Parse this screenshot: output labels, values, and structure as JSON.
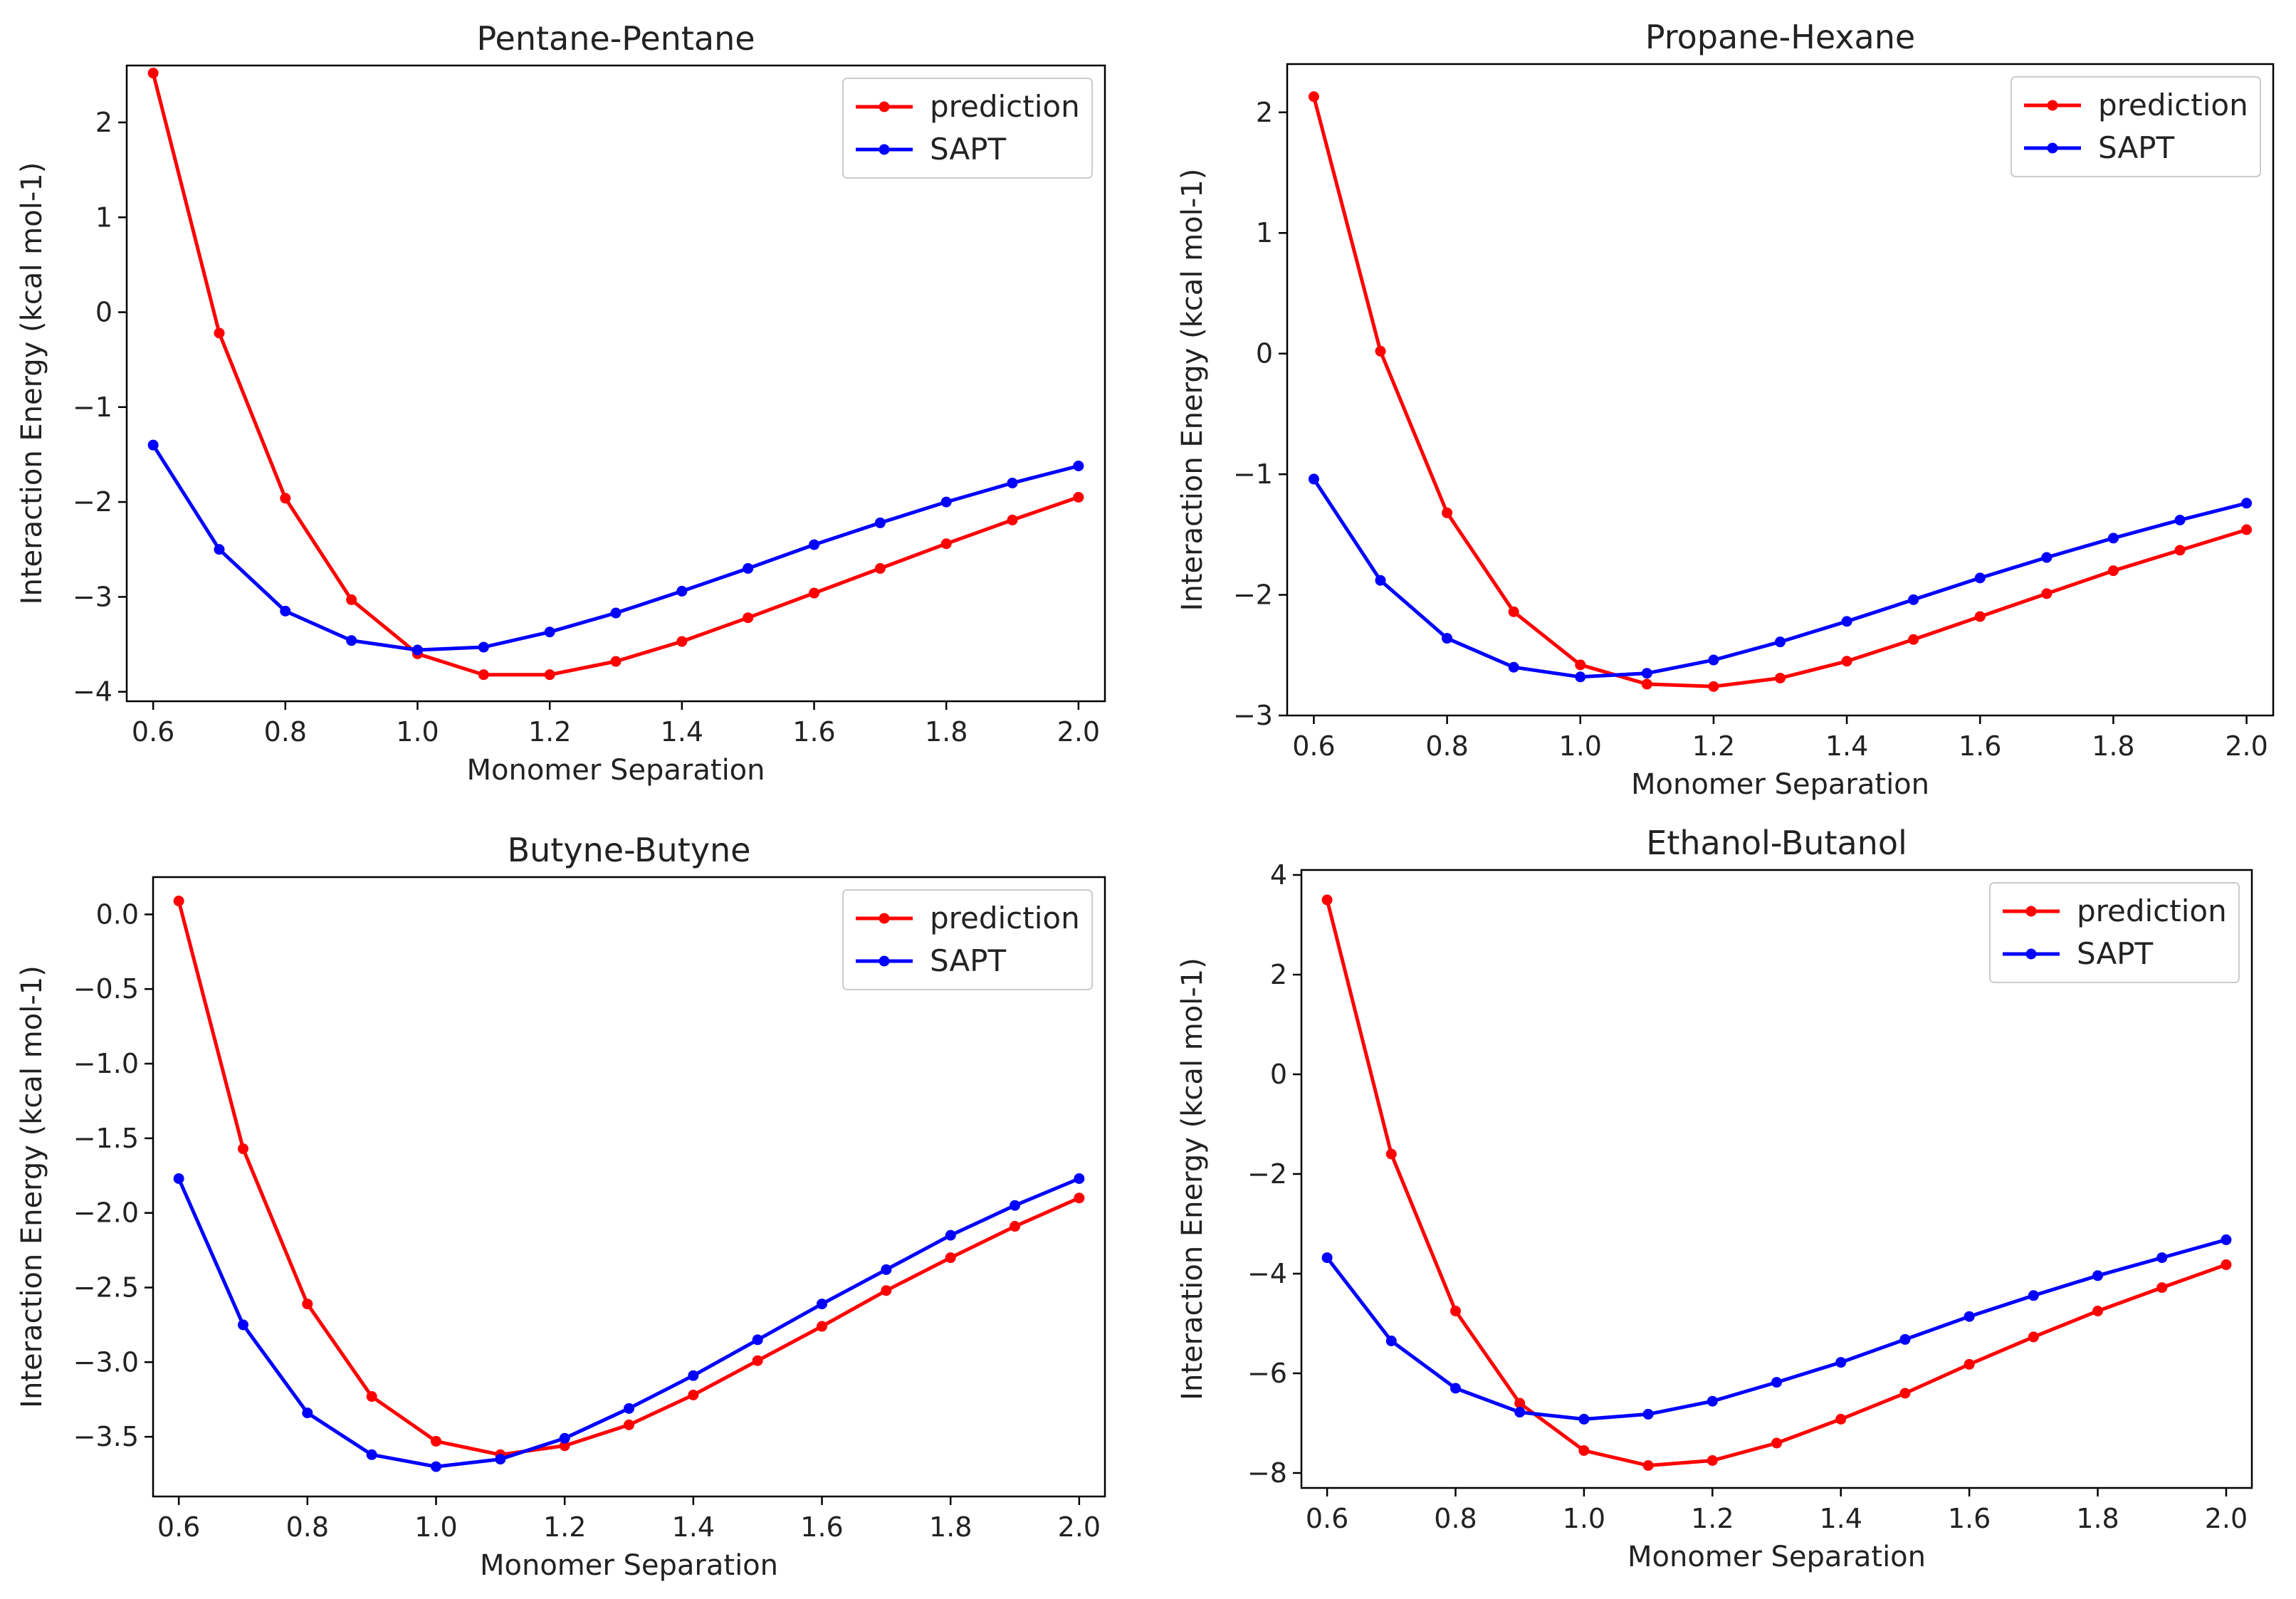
{
  "figure_title": "",
  "chart_data": [
    {
      "type": "line",
      "title": "Pentane-Pentane",
      "xlabel": "Monomer Separation",
      "ylabel": "Interaction Energy (kcal mol-1)",
      "xlim": [
        0.56,
        2.04
      ],
      "ylim": [
        -4.1,
        2.6
      ],
      "xticks": [
        0.6,
        0.8,
        1.0,
        1.2,
        1.4,
        1.6,
        1.8,
        2.0
      ],
      "xtick_labels": [
        "0.6",
        "0.8",
        "1.0",
        "1.2",
        "1.4",
        "1.6",
        "1.8",
        "2.0"
      ],
      "yticks": [
        -4,
        -3,
        -2,
        -1,
        0,
        1,
        2
      ],
      "ytick_labels": [
        "−4",
        "−3",
        "−2",
        "−1",
        "0",
        "1",
        "2"
      ],
      "x": [
        0.6,
        0.7,
        0.8,
        0.9,
        1.0,
        1.1,
        1.2,
        1.3,
        1.4,
        1.5,
        1.6,
        1.7,
        1.8,
        1.9,
        2.0
      ],
      "series": [
        {
          "name": "prediction",
          "color": "#ff0000",
          "values": [
            2.52,
            -0.22,
            -1.96,
            -3.03,
            -3.6,
            -3.82,
            -3.82,
            -3.68,
            -3.47,
            -3.22,
            -2.96,
            -2.7,
            -2.44,
            -2.19,
            -1.95
          ]
        },
        {
          "name": "SAPT",
          "color": "#0000ff",
          "values": [
            -1.4,
            -2.5,
            -3.15,
            -3.46,
            -3.56,
            -3.53,
            -3.37,
            -3.17,
            -2.94,
            -2.7,
            -2.45,
            -2.22,
            -2.0,
            -1.8,
            -1.62
          ]
        }
      ],
      "legend": "upper right"
    },
    {
      "type": "line",
      "title": "Propane-Hexane",
      "xlabel": "Monomer Separation",
      "ylabel": "Interaction Energy (kcal mol-1)",
      "xlim": [
        0.56,
        2.04
      ],
      "ylim": [
        -3.0,
        2.4
      ],
      "xticks": [
        0.6,
        0.8,
        1.0,
        1.2,
        1.4,
        1.6,
        1.8,
        2.0
      ],
      "xtick_labels": [
        "0.6",
        "0.8",
        "1.0",
        "1.2",
        "1.4",
        "1.6",
        "1.8",
        "2.0"
      ],
      "yticks": [
        -3,
        -2,
        -1,
        0,
        1,
        2
      ],
      "ytick_labels": [
        "−3",
        "−2",
        "−1",
        "0",
        "1",
        "2"
      ],
      "x": [
        0.6,
        0.7,
        0.8,
        0.9,
        1.0,
        1.1,
        1.2,
        1.3,
        1.4,
        1.5,
        1.6,
        1.7,
        1.8,
        1.9,
        2.0
      ],
      "series": [
        {
          "name": "prediction",
          "color": "#ff0000",
          "values": [
            2.13,
            0.02,
            -1.32,
            -2.14,
            -2.58,
            -2.74,
            -2.76,
            -2.69,
            -2.55,
            -2.37,
            -2.18,
            -1.99,
            -1.8,
            -1.63,
            -1.46
          ]
        },
        {
          "name": "SAPT",
          "color": "#0000ff",
          "values": [
            -1.04,
            -1.88,
            -2.36,
            -2.6,
            -2.68,
            -2.65,
            -2.54,
            -2.39,
            -2.22,
            -2.04,
            -1.86,
            -1.69,
            -1.53,
            -1.38,
            -1.24
          ]
        }
      ],
      "legend": "upper right"
    },
    {
      "type": "line",
      "title": "Butyne-Butyne",
      "xlabel": "Monomer Separation",
      "ylabel": "Interaction Energy (kcal mol-1)",
      "xlim": [
        0.56,
        2.04
      ],
      "ylim": [
        -3.9,
        0.25
      ],
      "xticks": [
        0.6,
        0.8,
        1.0,
        1.2,
        1.4,
        1.6,
        1.8,
        2.0
      ],
      "xtick_labels": [
        "0.6",
        "0.8",
        "1.0",
        "1.2",
        "1.4",
        "1.6",
        "1.8",
        "2.0"
      ],
      "yticks": [
        -3.5,
        -3.0,
        -2.5,
        -2.0,
        -1.5,
        -1.0,
        -0.5,
        0.0
      ],
      "ytick_labels": [
        "−3.5",
        "−3.0",
        "−2.5",
        "−2.0",
        "−1.5",
        "−1.0",
        "−0.5",
        "0.0"
      ],
      "x": [
        0.6,
        0.7,
        0.8,
        0.9,
        1.0,
        1.1,
        1.2,
        1.3,
        1.4,
        1.5,
        1.6,
        1.7,
        1.8,
        1.9,
        2.0
      ],
      "series": [
        {
          "name": "prediction",
          "color": "#ff0000",
          "values": [
            0.09,
            -1.57,
            -2.61,
            -3.23,
            -3.53,
            -3.62,
            -3.56,
            -3.42,
            -3.22,
            -2.99,
            -2.76,
            -2.52,
            -2.3,
            -2.09,
            -1.9
          ]
        },
        {
          "name": "SAPT",
          "color": "#0000ff",
          "values": [
            -1.77,
            -2.75,
            -3.34,
            -3.62,
            -3.7,
            -3.65,
            -3.51,
            -3.31,
            -3.09,
            -2.85,
            -2.61,
            -2.38,
            -2.15,
            -1.95,
            -1.77
          ]
        }
      ],
      "legend": "upper right"
    },
    {
      "type": "line",
      "title": "Ethanol-Butanol",
      "xlabel": "Monomer Separation",
      "ylabel": "Interaction Energy (kcal mol-1)",
      "xlim": [
        0.56,
        2.04
      ],
      "ylim": [
        -8.3,
        4.1
      ],
      "xticks": [
        0.6,
        0.8,
        1.0,
        1.2,
        1.4,
        1.6,
        1.8,
        2.0
      ],
      "xtick_labels": [
        "0.6",
        "0.8",
        "1.0",
        "1.2",
        "1.4",
        "1.6",
        "1.8",
        "2.0"
      ],
      "yticks": [
        -8,
        -6,
        -4,
        -2,
        0,
        2,
        4
      ],
      "ytick_labels": [
        "−8",
        "−6",
        "−4",
        "−2",
        "0",
        "2",
        "4"
      ],
      "x": [
        0.6,
        0.7,
        0.8,
        0.9,
        1.0,
        1.1,
        1.2,
        1.3,
        1.4,
        1.5,
        1.6,
        1.7,
        1.8,
        1.9,
        2.0
      ],
      "series": [
        {
          "name": "prediction",
          "color": "#ff0000",
          "values": [
            3.5,
            -1.6,
            -4.75,
            -6.6,
            -7.55,
            -7.85,
            -7.75,
            -7.4,
            -6.92,
            -6.4,
            -5.82,
            -5.27,
            -4.75,
            -4.28,
            -3.82
          ]
        },
        {
          "name": "SAPT",
          "color": "#0000ff",
          "values": [
            -3.68,
            -5.35,
            -6.3,
            -6.78,
            -6.92,
            -6.82,
            -6.56,
            -6.18,
            -5.78,
            -5.32,
            -4.86,
            -4.44,
            -4.04,
            -3.68,
            -3.32
          ]
        }
      ],
      "legend": "upper right"
    }
  ]
}
